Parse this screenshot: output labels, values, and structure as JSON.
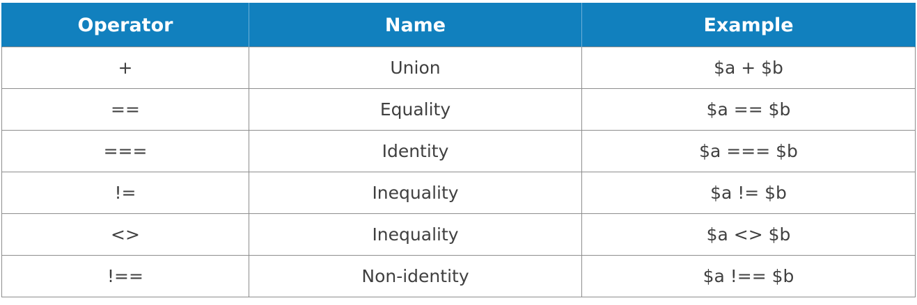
{
  "table": {
    "headers": [
      "Operator",
      "Name",
      "Example"
    ],
    "rows": [
      [
        "+",
        "Union",
        "$a + $b"
      ],
      [
        "==",
        "Equality",
        "$a == $b"
      ],
      [
        "===",
        "Identity",
        "$a === $b"
      ],
      [
        "!=",
        "Inequality",
        "$a != $b"
      ],
      [
        "<>",
        "Inequality",
        "$a <> $b"
      ],
      [
        "!==",
        "Non-identity",
        "$a !== $b"
      ]
    ]
  },
  "colors": {
    "header_background": "#1180be",
    "header_text": "#ffffff",
    "cell_text": "#404040",
    "grid_line": "#8c8c8c"
  }
}
